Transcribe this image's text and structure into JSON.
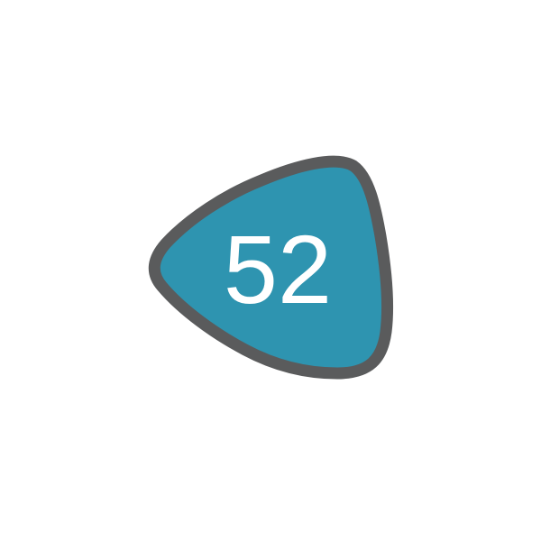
{
  "badge": {
    "number": "52",
    "fill_color": "#2e94b0",
    "stroke_color": "#5a5b5c",
    "text_color": "#ffffff"
  }
}
